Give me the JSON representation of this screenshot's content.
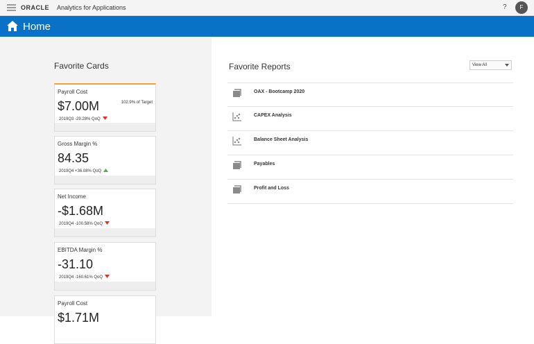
{
  "header": {
    "brand": "ORACLE",
    "product": "Analytics for Applications",
    "help": "?",
    "avatar": "F"
  },
  "banner": {
    "title": "Home"
  },
  "favorite_cards": {
    "title": "Favorite Cards",
    "cards": [
      {
        "title": "Payroll Cost",
        "value": "$7.00M",
        "target": "102.9% of Target",
        "period": "2019Q3",
        "change": "-29.28% QoQ",
        "trend": "down"
      },
      {
        "title": "Gross Margin %",
        "value": "84.35",
        "period": "2019Q4",
        "change": "+36.08% QoQ",
        "trend": "up"
      },
      {
        "title": "Net Income",
        "value": "-$1.68M",
        "period": "2019Q4",
        "change": "-100.58% QoQ",
        "trend": "down"
      },
      {
        "title": "EBITDA Margin %",
        "value": "-31.10",
        "period": "2019Q4",
        "change": "-160.61% QoQ",
        "trend": "down"
      },
      {
        "title": "Payroll Cost",
        "value": "$1.71M"
      }
    ]
  },
  "favorite_reports": {
    "title": "Favorite Reports",
    "filter": "View All",
    "reports": [
      {
        "name": "OAX - Bootcamp 2020",
        "icon": "book"
      },
      {
        "name": "CAPEX Analysis",
        "icon": "scatter"
      },
      {
        "name": "Balance Sheet Analysis",
        "icon": "scatter"
      },
      {
        "name": "Payables",
        "icon": "book"
      },
      {
        "name": "Profit and Loss",
        "icon": "book"
      }
    ]
  }
}
